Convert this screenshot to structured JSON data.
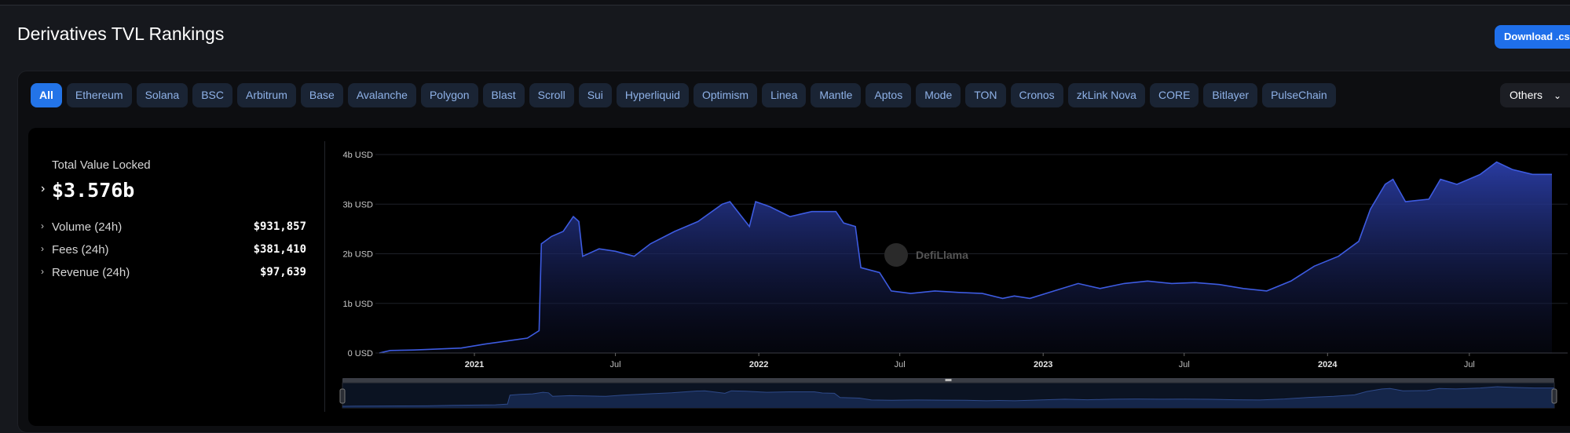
{
  "page": {
    "title": "Derivatives TVL Rankings",
    "download_label": "Download .csv"
  },
  "chains": [
    "All",
    "Ethereum",
    "Solana",
    "BSC",
    "Arbitrum",
    "Base",
    "Avalanche",
    "Polygon",
    "Blast",
    "Scroll",
    "Sui",
    "Hyperliquid",
    "Optimism",
    "Linea",
    "Mantle",
    "Aptos",
    "Mode",
    "TON",
    "Cronos",
    "zkLink Nova",
    "CORE",
    "Bitlayer",
    "PulseChain"
  ],
  "active_chain": "All",
  "others_label": "Others",
  "summary": {
    "tvl_label": "Total Value Locked",
    "tvl_value": "$3.576b",
    "metrics": [
      {
        "label": "Volume (24h)",
        "value": "$931,857"
      },
      {
        "label": "Fees (24h)",
        "value": "$381,410"
      },
      {
        "label": "Revenue (24h)",
        "value": "$97,639"
      }
    ]
  },
  "watermark": "DefiLlama",
  "colors": {
    "accent": "#2374e8",
    "line": "#3d5be0",
    "fill_top": "#2b3ea8"
  },
  "chart_data": {
    "type": "area",
    "title": "",
    "xlabel": "",
    "ylabel": "",
    "y_unit": "USD",
    "ylim": [
      0,
      4
    ],
    "y_ticks": [
      {
        "value": 0,
        "label": "0 USD"
      },
      {
        "value": 1,
        "label": "1b USD"
      },
      {
        "value": 2,
        "label": "2b USD"
      },
      {
        "value": 3,
        "label": "3b USD"
      },
      {
        "value": 4,
        "label": "4b USD"
      }
    ],
    "x_range": [
      "2020-09-01",
      "2024-10-15"
    ],
    "x_ticks": [
      {
        "date": "2021-01-01",
        "label": "2021",
        "bold": true
      },
      {
        "date": "2021-07-01",
        "label": "Jul",
        "bold": false
      },
      {
        "date": "2022-01-01",
        "label": "2022",
        "bold": true
      },
      {
        "date": "2022-07-01",
        "label": "Jul",
        "bold": false
      },
      {
        "date": "2023-01-01",
        "label": "2023",
        "bold": true
      },
      {
        "date": "2023-07-01",
        "label": "Jul",
        "bold": false
      },
      {
        "date": "2024-01-01",
        "label": "2024",
        "bold": true
      },
      {
        "date": "2024-07-01",
        "label": "Jul",
        "bold": false
      }
    ],
    "series": [
      {
        "name": "",
        "points": [
          [
            "2020-09-01",
            0.0
          ],
          [
            "2020-09-15",
            0.05
          ],
          [
            "2020-10-15",
            0.06
          ],
          [
            "2020-11-15",
            0.08
          ],
          [
            "2020-12-15",
            0.1
          ],
          [
            "2021-01-15",
            0.18
          ],
          [
            "2021-02-15",
            0.25
          ],
          [
            "2021-03-10",
            0.3
          ],
          [
            "2021-03-25",
            0.45
          ],
          [
            "2021-03-28",
            2.2
          ],
          [
            "2021-04-10",
            2.35
          ],
          [
            "2021-04-25",
            2.45
          ],
          [
            "2021-05-08",
            2.75
          ],
          [
            "2021-05-15",
            2.65
          ],
          [
            "2021-05-20",
            1.95
          ],
          [
            "2021-06-10",
            2.1
          ],
          [
            "2021-07-01",
            2.05
          ],
          [
            "2021-07-25",
            1.95
          ],
          [
            "2021-08-15",
            2.2
          ],
          [
            "2021-09-15",
            2.45
          ],
          [
            "2021-10-15",
            2.65
          ],
          [
            "2021-11-15",
            3.0
          ],
          [
            "2021-11-25",
            3.05
          ],
          [
            "2021-12-10",
            2.75
          ],
          [
            "2021-12-20",
            2.55
          ],
          [
            "2021-12-28",
            3.05
          ],
          [
            "2022-01-15",
            2.95
          ],
          [
            "2022-02-10",
            2.75
          ],
          [
            "2022-03-10",
            2.85
          ],
          [
            "2022-04-10",
            2.85
          ],
          [
            "2022-04-20",
            2.62
          ],
          [
            "2022-05-05",
            2.55
          ],
          [
            "2022-05-12",
            1.72
          ],
          [
            "2022-06-05",
            1.62
          ],
          [
            "2022-06-20",
            1.25
          ],
          [
            "2022-07-15",
            1.2
          ],
          [
            "2022-08-15",
            1.25
          ],
          [
            "2022-09-15",
            1.22
          ],
          [
            "2022-10-15",
            1.2
          ],
          [
            "2022-11-10",
            1.1
          ],
          [
            "2022-11-25",
            1.15
          ],
          [
            "2022-12-15",
            1.1
          ],
          [
            "2023-01-15",
            1.25
          ],
          [
            "2023-02-15",
            1.4
          ],
          [
            "2023-03-15",
            1.3
          ],
          [
            "2023-04-15",
            1.4
          ],
          [
            "2023-05-15",
            1.45
          ],
          [
            "2023-06-15",
            1.4
          ],
          [
            "2023-07-15",
            1.42
          ],
          [
            "2023-08-15",
            1.38
          ],
          [
            "2023-09-15",
            1.3
          ],
          [
            "2023-10-15",
            1.25
          ],
          [
            "2023-11-15",
            1.45
          ],
          [
            "2023-12-15",
            1.75
          ],
          [
            "2024-01-15",
            1.95
          ],
          [
            "2024-02-10",
            2.25
          ],
          [
            "2024-02-25",
            2.9
          ],
          [
            "2024-03-15",
            3.4
          ],
          [
            "2024-03-25",
            3.5
          ],
          [
            "2024-04-10",
            3.05
          ],
          [
            "2024-05-10",
            3.1
          ],
          [
            "2024-05-25",
            3.5
          ],
          [
            "2024-06-15",
            3.4
          ],
          [
            "2024-07-15",
            3.6
          ],
          [
            "2024-08-05",
            3.85
          ],
          [
            "2024-08-25",
            3.7
          ],
          [
            "2024-09-20",
            3.6
          ],
          [
            "2024-10-15",
            3.6
          ]
        ]
      }
    ],
    "grid": true,
    "legend": "none"
  }
}
